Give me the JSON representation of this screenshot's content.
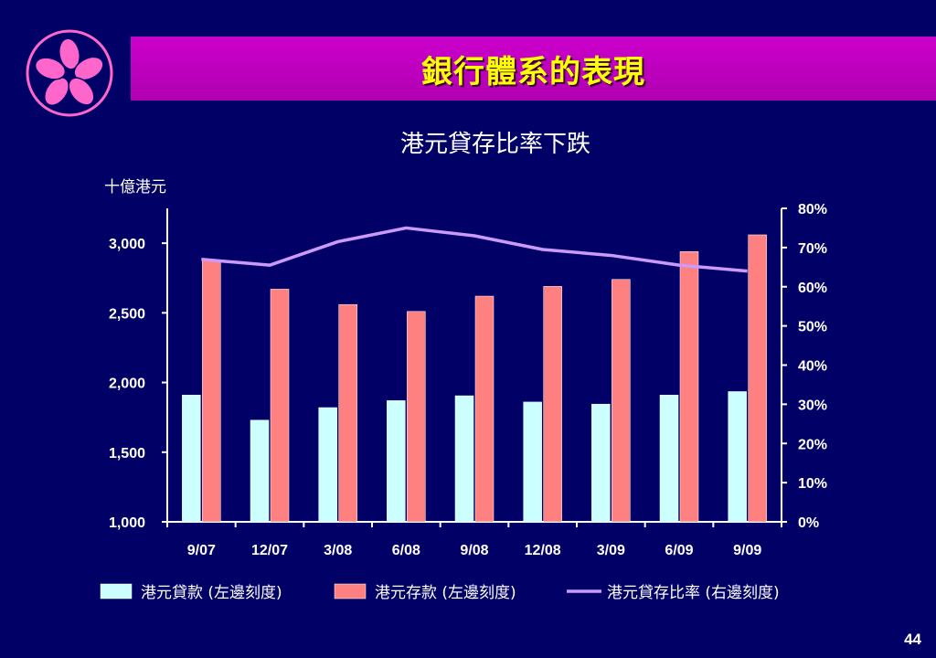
{
  "header": {
    "title": "銀行體系的表現"
  },
  "colors": {
    "background": "#000066",
    "title_bar": "#cc00cc",
    "title_text": "#ffff00",
    "loans": "#ccffff",
    "deposits": "#ff8080",
    "ratio": "#cc99ff",
    "logo": "#ff66cc"
  },
  "chart_data": {
    "type": "bar",
    "title": "港元貸存比率下跌",
    "ylabel": "十億港元",
    "categories": [
      "9/07",
      "12/07",
      "3/08",
      "6/08",
      "9/08",
      "12/08",
      "3/09",
      "6/09",
      "9/09"
    ],
    "left_ylim": [
      1000,
      3250
    ],
    "left_ticks": [
      "1,000",
      "1,500",
      "2,000",
      "2,500",
      "3,000"
    ],
    "left_tick_values": [
      1000,
      1500,
      2000,
      2500,
      3000
    ],
    "right_ylim": [
      0,
      80
    ],
    "right_ticks": [
      "0%",
      "10%",
      "20%",
      "30%",
      "40%",
      "50%",
      "60%",
      "70%",
      "80%"
    ],
    "right_tick_values": [
      0,
      10,
      20,
      30,
      40,
      50,
      60,
      70,
      80
    ],
    "series": [
      {
        "name": "港元貸款 (左邊刻度)",
        "type": "bar",
        "axis": "left",
        "values": [
          1910,
          1730,
          1820,
          1870,
          1905,
          1860,
          1845,
          1910,
          1935
        ]
      },
      {
        "name": "港元存款 (左邊刻度)",
        "type": "bar",
        "axis": "left",
        "values": [
          2880,
          2670,
          2560,
          2510,
          2620,
          2690,
          2740,
          2940,
          3060
        ]
      },
      {
        "name": "港元貸存比率 (右邊刻度)",
        "type": "line",
        "axis": "right",
        "values": [
          67,
          65.5,
          71.5,
          75,
          73,
          69.5,
          68,
          65.5,
          64
        ]
      }
    ],
    "legend_position": "bottom"
  },
  "footer": {
    "page_number": "44"
  }
}
